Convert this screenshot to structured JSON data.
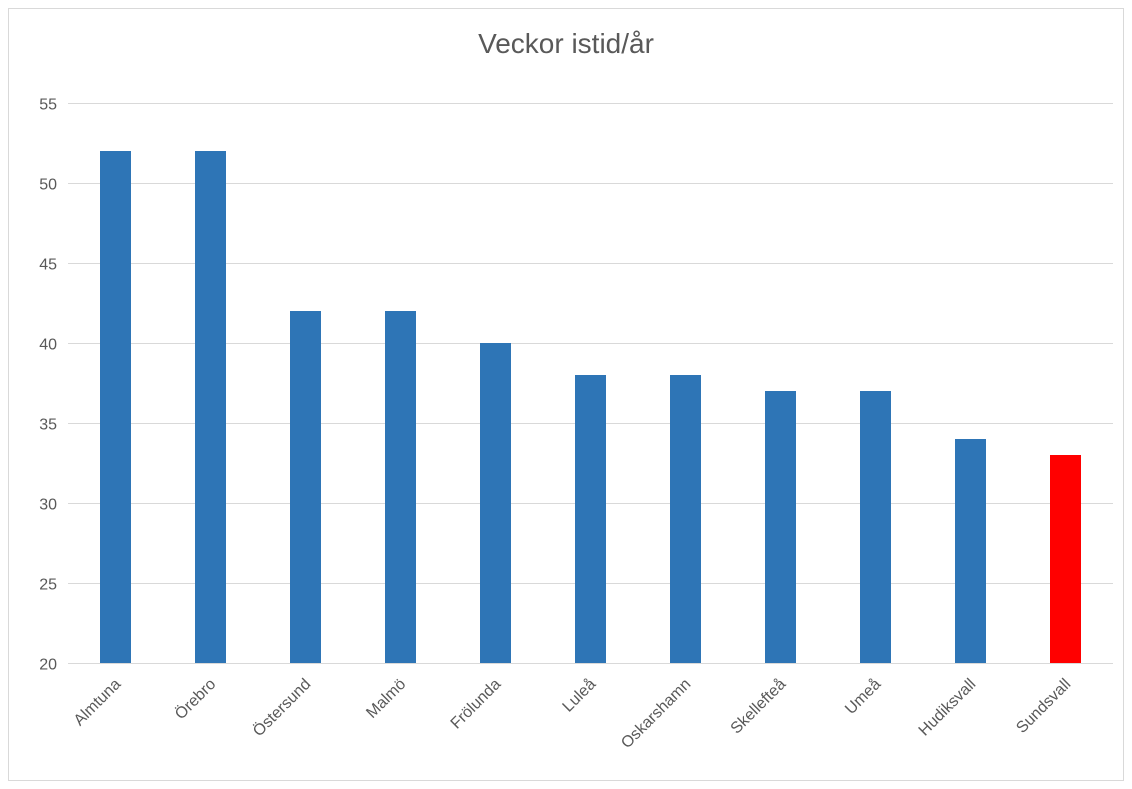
{
  "chart_data": {
    "type": "bar",
    "title": "Veckor istid/år",
    "xlabel": "",
    "ylabel": "",
    "categories": [
      "Almtuna",
      "Örebro",
      "Östersund",
      "Malmö",
      "Frölunda",
      "Luleå",
      "Oskarshamn",
      "Skellefteå",
      "Umeå",
      "Hudiksvall",
      "Sundsvall"
    ],
    "values": [
      52,
      52,
      42,
      42,
      40,
      38,
      38,
      37,
      37,
      34,
      33
    ],
    "ylim": [
      20,
      55
    ],
    "yticks": [
      "20",
      "25",
      "30",
      "35",
      "40",
      "45",
      "50",
      "55"
    ],
    "grid": true,
    "legend": "none",
    "colors": {
      "default_bar": "#2e75b6",
      "highlight_bar": "#ff0000",
      "highlight_category": "Sundsvall",
      "gridline": "#d9d9d9",
      "axis": "#d9d9d9"
    }
  }
}
